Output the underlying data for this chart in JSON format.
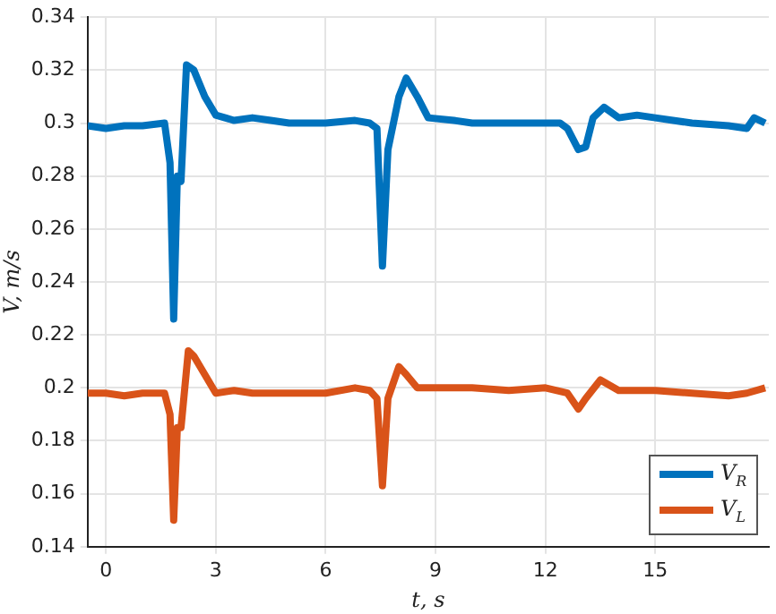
{
  "chart_data": {
    "type": "line",
    "xlabel": "t, s",
    "ylabel": "V, m/s",
    "xlim": [
      -0.5,
      18.1
    ],
    "xticks": [
      0,
      3,
      6,
      9,
      12,
      15
    ],
    "ylim": [
      0.14,
      0.34
    ],
    "yticks": [
      0.14,
      0.16,
      0.18,
      0.2,
      0.22,
      0.24,
      0.26,
      0.28,
      0.3,
      0.32,
      0.34
    ],
    "grid": true,
    "legend": "bottom right",
    "marker": "none",
    "line_style": "solid",
    "series": [
      {
        "name": "V$_{R}$",
        "color": "#0072bd",
        "x": [
          -0.5,
          0,
          0.5,
          1,
          1.6,
          1.75,
          1.85,
          1.95,
          2.05,
          2.2,
          2.4,
          2.7,
          3,
          3.5,
          4,
          4.5,
          5,
          6,
          6.8,
          7.2,
          7.4,
          7.55,
          7.7,
          8,
          8.2,
          8.5,
          8.8,
          9.5,
          10,
          11,
          12,
          12.4,
          12.6,
          12.9,
          13.1,
          13.3,
          13.6,
          14,
          14.5,
          15,
          16,
          17,
          17.5,
          17.7,
          18
        ],
        "values": [
          0.299,
          0.298,
          0.299,
          0.299,
          0.3,
          0.285,
          0.226,
          0.28,
          0.278,
          0.322,
          0.32,
          0.31,
          0.303,
          0.301,
          0.302,
          0.301,
          0.3,
          0.3,
          0.301,
          0.3,
          0.298,
          0.246,
          0.29,
          0.31,
          0.317,
          0.31,
          0.302,
          0.301,
          0.3,
          0.3,
          0.3,
          0.3,
          0.298,
          0.29,
          0.291,
          0.302,
          0.306,
          0.302,
          0.303,
          0.302,
          0.3,
          0.299,
          0.298,
          0.302,
          0.3
        ]
      },
      {
        "name": "V$_{L}$",
        "color": "#d95319",
        "x": [
          -0.5,
          0,
          0.5,
          1,
          1.6,
          1.75,
          1.85,
          1.95,
          2.05,
          2.25,
          2.4,
          2.7,
          3,
          3.5,
          4,
          5,
          6,
          6.8,
          7.2,
          7.4,
          7.55,
          7.7,
          8,
          8.2,
          8.5,
          9,
          10,
          11,
          12,
          12.6,
          12.9,
          13.1,
          13.5,
          14,
          15,
          16,
          17,
          17.5,
          18
        ],
        "values": [
          0.198,
          0.198,
          0.197,
          0.198,
          0.198,
          0.19,
          0.15,
          0.185,
          0.185,
          0.214,
          0.212,
          0.205,
          0.198,
          0.199,
          0.198,
          0.198,
          0.198,
          0.2,
          0.199,
          0.196,
          0.163,
          0.196,
          0.208,
          0.205,
          0.2,
          0.2,
          0.2,
          0.199,
          0.2,
          0.198,
          0.192,
          0.196,
          0.203,
          0.199,
          0.199,
          0.198,
          0.197,
          0.198,
          0.2
        ]
      }
    ]
  }
}
